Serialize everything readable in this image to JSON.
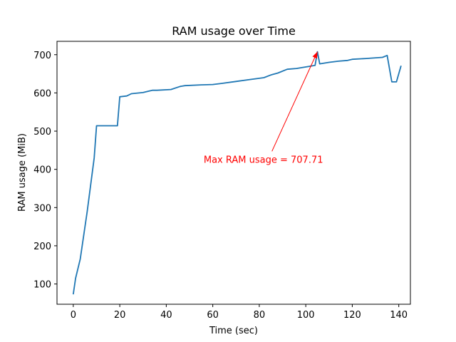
{
  "chart_data": {
    "type": "line",
    "title": "RAM usage over Time",
    "xlabel": "Time (sec)",
    "ylabel": "RAM usage (MiB)",
    "xlim": [
      -7,
      145
    ],
    "ylim": [
      47,
      735
    ],
    "xticks": [
      0,
      20,
      40,
      60,
      80,
      100,
      120,
      140
    ],
    "yticks": [
      100,
      200,
      300,
      400,
      500,
      600,
      700
    ],
    "grid": false,
    "series": [
      {
        "color": "#1f77b4",
        "x": [
          0,
          1,
          3,
          6,
          9,
          10,
          12,
          19,
          20,
          23,
          25,
          30,
          32,
          34,
          36,
          42,
          46,
          48,
          55,
          60,
          64,
          70,
          76,
          82,
          85,
          88,
          92,
          96,
          102,
          104,
          105,
          106,
          110,
          114,
          118,
          120,
          126,
          128,
          133,
          135,
          137,
          139,
          141
        ],
        "y": [
          73,
          115,
          165,
          290,
          430,
          514,
          514,
          514,
          590,
          592,
          598,
          601,
          604,
          607,
          607,
          609,
          617,
          619,
          621,
          622,
          625,
          630,
          635,
          640,
          647,
          652,
          662,
          664,
          670,
          672,
          707.71,
          676,
          680,
          683,
          685,
          688,
          690,
          691,
          693,
          698,
          629,
          629,
          671
        ]
      }
    ],
    "annotation": {
      "text": "Max RAM usage = 707.71",
      "xy": [
        105,
        707.71
      ],
      "xytext": [
        83,
        410
      ],
      "color": "#ff0000"
    }
  }
}
